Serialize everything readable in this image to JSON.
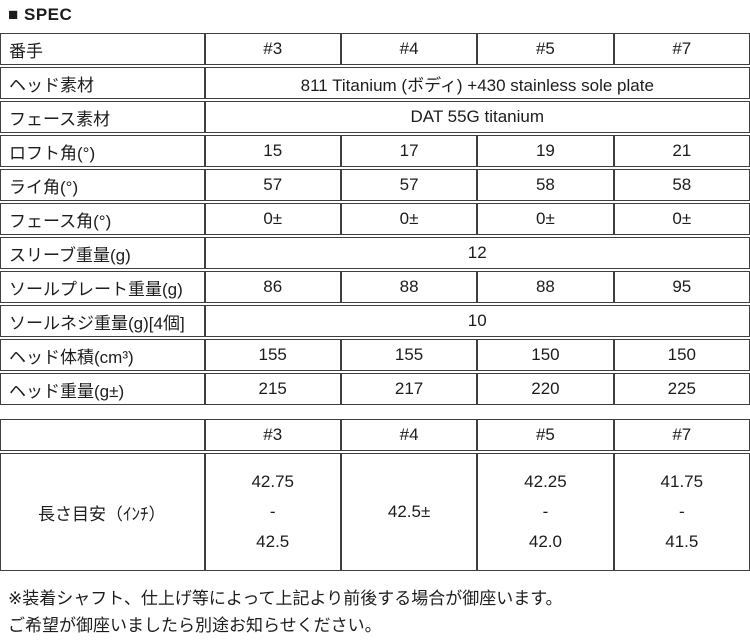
{
  "page": {
    "title": "■ SPEC"
  },
  "spec_table": {
    "rows": [
      {
        "label": "番手",
        "values": [
          "#3",
          "#4",
          "#5",
          "#7"
        ]
      },
      {
        "label": "ヘッド素材",
        "span": "811 Titanium (ボディ) +430 stainless sole plate"
      },
      {
        "label": "フェース素材",
        "span": "DAT 55G titanium"
      },
      {
        "label": "ロフト角(°)",
        "values": [
          "15",
          "17",
          "19",
          "21"
        ]
      },
      {
        "label": "ライ角(°)",
        "values": [
          "57",
          "57",
          "58",
          "58"
        ]
      },
      {
        "label": "フェース角(°)",
        "values": [
          "0±",
          "0±",
          "0±",
          "0±"
        ]
      },
      {
        "label": "スリーブ重量(g)",
        "span": "12"
      },
      {
        "label": "ソールプレート重量(g)",
        "values": [
          "86",
          "88",
          "88",
          "95"
        ]
      },
      {
        "label": "ソールネジ重量(g)[4個]",
        "span": "10"
      },
      {
        "label": "ヘッド体積(cm³)",
        "values": [
          "155",
          "155",
          "150",
          "150"
        ]
      },
      {
        "label": "ヘッド重量(g±)",
        "values": [
          "215",
          "217",
          "220",
          "225"
        ]
      }
    ]
  },
  "length_table": {
    "header": [
      "#3",
      "#4",
      "#5",
      "#7"
    ],
    "row_label": "長さ目安（ｲﾝﾁ）",
    "cells": [
      {
        "lines": [
          "42.75",
          "-",
          "42.5"
        ]
      },
      {
        "lines": [
          "42.5±"
        ]
      },
      {
        "lines": [
          "42.25",
          "-",
          "42.0"
        ]
      },
      {
        "lines": [
          "41.75",
          "-",
          "41.5"
        ]
      }
    ]
  },
  "footer": {
    "line1": "※装着シャフト、仕上げ等によって上記より前後する場合が御座います。",
    "line2": "ご希望が御座いましたら別途お知らせください。"
  }
}
